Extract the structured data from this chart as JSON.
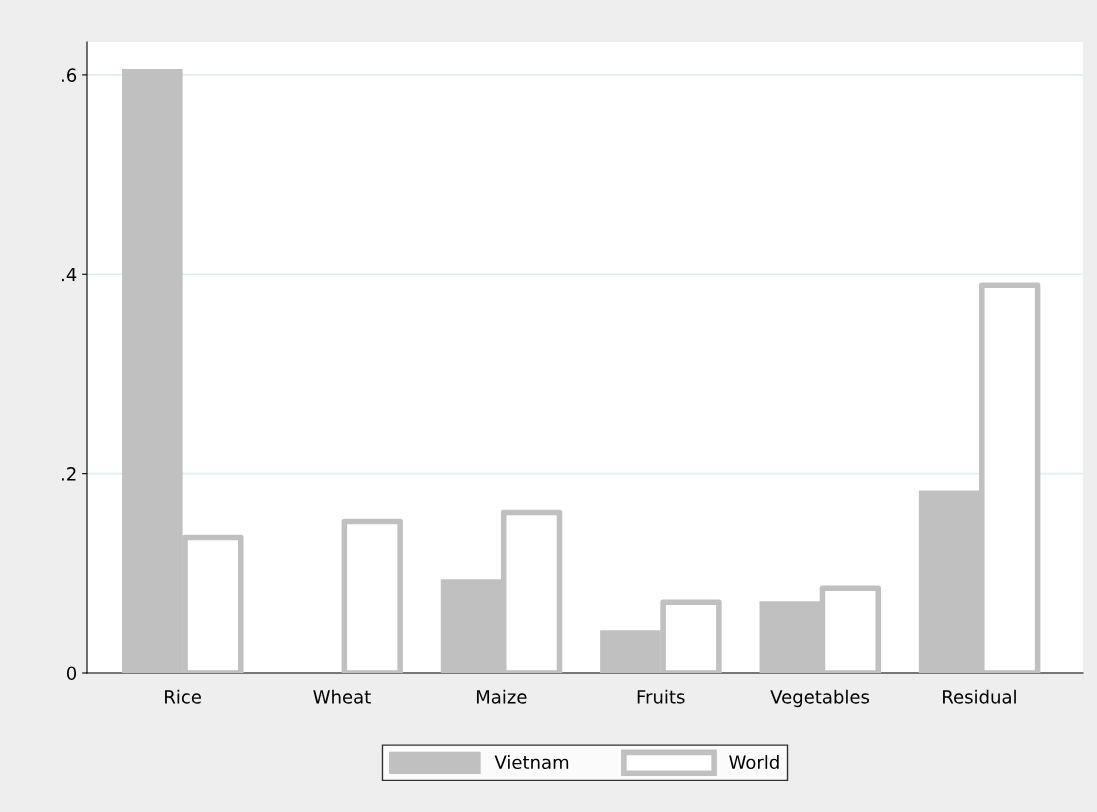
{
  "chart_data": {
    "type": "bar",
    "categories": [
      "Rice",
      "Wheat",
      "Maize",
      "Fruits",
      "Vegetables",
      "Residual"
    ],
    "series": [
      {
        "name": "Vietnam",
        "color": "#c0c0c0",
        "values": [
          0.606,
          0,
          0.094,
          0.043,
          0.072,
          0.183
        ]
      },
      {
        "name": "World",
        "color": "#c0c0c0",
        "values": [
          0.136,
          0.152,
          0.161,
          0.071,
          0.085,
          0.389
        ]
      }
    ],
    "ylim": [
      0,
      0.633
    ],
    "yticks": [
      {
        "value": 0,
        "label": "0"
      },
      {
        "value": 0.2,
        "label": ".2"
      },
      {
        "value": 0.4,
        "label": ".4"
      },
      {
        "value": 0.6,
        "label": ".6"
      }
    ],
    "grid": "y",
    "legend": "bottom"
  }
}
